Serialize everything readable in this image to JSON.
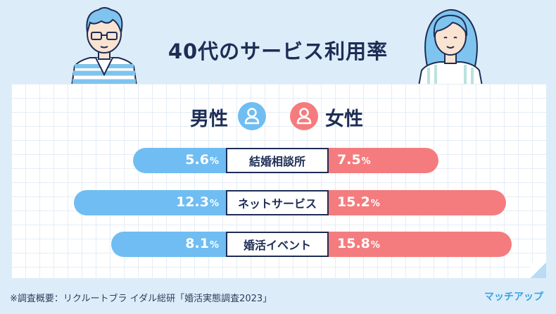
{
  "title": "40代のサービス利用率",
  "legend": {
    "male": "男性",
    "female": "女性"
  },
  "chart_data": {
    "type": "bar",
    "orientation": "horizontal-butterfly",
    "categories": [
      "結婚相談所",
      "ネットサービス",
      "婚活イベント"
    ],
    "series": [
      {
        "name": "男性",
        "values": [
          5.6,
          12.3,
          8.1
        ],
        "color": "#6fbdf2"
      },
      {
        "name": "女性",
        "values": [
          7.5,
          15.2,
          15.8
        ],
        "color": "#f47c7e"
      }
    ],
    "unit": "%",
    "value_labels": {
      "male": [
        "5.6",
        "12.3",
        "8.1"
      ],
      "female": [
        "7.5",
        "15.2",
        "15.8"
      ]
    }
  },
  "footnote": "※調査概要：リクルートブラ イダル総研「婚活実態調査2023」",
  "brand": "マッチアップ",
  "icons": {
    "male": "person-icon",
    "female": "person-icon"
  }
}
